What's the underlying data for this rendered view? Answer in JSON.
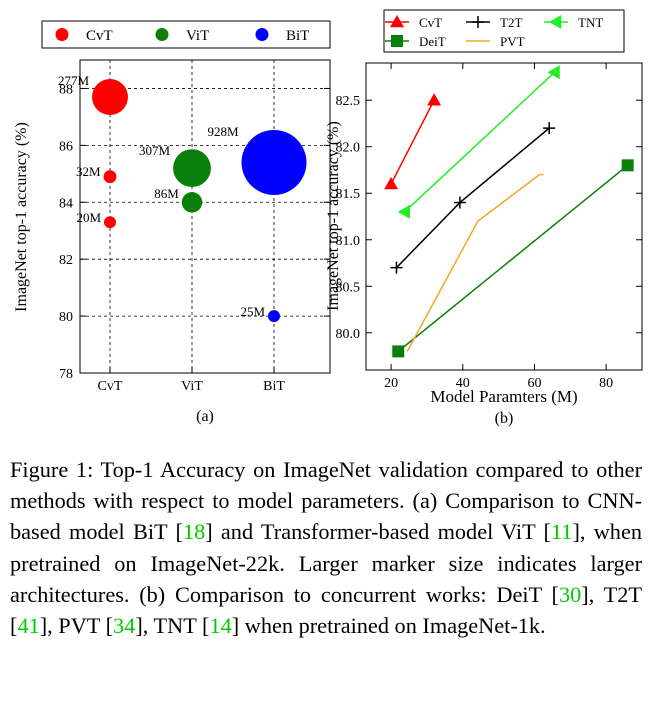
{
  "chart_data": [
    {
      "type": "scatter",
      "panel_label": "(a)",
      "xlabel": "",
      "ylabel": "ImageNet top-1 accuracy (%)",
      "categories": [
        "CvT",
        "ViT",
        "BiT"
      ],
      "ylim": [
        78,
        89
      ],
      "yticks": [
        "78",
        "80",
        "82",
        "84",
        "86",
        "88"
      ],
      "legend": {
        "placement": "top",
        "entries": [
          "CvT",
          "ViT",
          "BiT"
        ]
      },
      "series": [
        {
          "name": "CvT",
          "color": "#ff0000",
          "points": [
            {
              "category": "CvT",
              "y": 87.7,
              "params_m": 277,
              "label": "277M"
            },
            {
              "category": "CvT",
              "y": 84.9,
              "params_m": 32,
              "label": "32M"
            },
            {
              "category": "CvT",
              "y": 83.3,
              "params_m": 20,
              "label": "20M"
            }
          ]
        },
        {
          "name": "ViT",
          "color": "#0a800a",
          "points": [
            {
              "category": "ViT",
              "y": 85.2,
              "params_m": 307,
              "label": "307M"
            },
            {
              "category": "ViT",
              "y": 84.0,
              "params_m": 86,
              "label": "86M"
            }
          ]
        },
        {
          "name": "BiT",
          "color": "#0000ff",
          "points": [
            {
              "category": "BiT",
              "y": 85.4,
              "params_m": 928,
              "label": "928M"
            },
            {
              "category": "BiT",
              "y": 80.0,
              "params_m": 25,
              "label": "25M"
            }
          ]
        }
      ]
    },
    {
      "type": "line",
      "panel_label": "(b)",
      "xlabel": "Model Paramters (M)",
      "ylabel": "ImageNet top-1 accuracy (%)",
      "xlim": [
        13,
        90
      ],
      "ylim": [
        79.6,
        82.9
      ],
      "xticks": [
        "20",
        "40",
        "60",
        "80"
      ],
      "yticks": [
        "80.0",
        "80.5",
        "81.0",
        "81.5",
        "82.0",
        "82.5"
      ],
      "legend": {
        "placement": "top",
        "entries": [
          "CvT",
          "T2T",
          "TNT",
          "DeiT",
          "PVT"
        ]
      },
      "series": [
        {
          "name": "CvT",
          "color": "#ff0000",
          "marker": "triangle-up",
          "x": [
            20,
            32
          ],
          "y": [
            81.6,
            82.5
          ]
        },
        {
          "name": "T2T",
          "color": "#000000",
          "marker": "plus",
          "x": [
            21.5,
            39.2,
            64.1
          ],
          "y": [
            80.7,
            81.4,
            82.2
          ]
        },
        {
          "name": "TNT",
          "color": "#22ee22",
          "marker": "triangle-left",
          "x": [
            23.8,
            65.6
          ],
          "y": [
            81.3,
            82.8
          ]
        },
        {
          "name": "DeiT",
          "color": "#0a800a",
          "marker": "square",
          "x": [
            22,
            86
          ],
          "y": [
            79.8,
            81.8
          ]
        },
        {
          "name": "PVT",
          "color": "#f5a623",
          "marker": "none",
          "x": [
            24.5,
            44.2,
            61.4,
            62.5
          ],
          "y": [
            79.8,
            81.2,
            81.7,
            81.7
          ]
        }
      ]
    }
  ],
  "caption": {
    "parts": [
      {
        "text": "Figure 1: Top-1 Accuracy on ImageNet validation compared to other methods with respect to model parameters. (a) Comparison to CNN-based model BiT ["
      },
      {
        "text": "18",
        "ref": true
      },
      {
        "text": "] and Transformer-based model ViT ["
      },
      {
        "text": "11",
        "ref": true
      },
      {
        "text": "], when pretrained on ImageNet-22k. Larger marker size indicates larger architectures. (b) Comparison to concurrent works: DeiT ["
      },
      {
        "text": "30",
        "ref": true
      },
      {
        "text": "], T2T ["
      },
      {
        "text": "41",
        "ref": true
      },
      {
        "text": "], PVT ["
      },
      {
        "text": "34",
        "ref": true
      },
      {
        "text": "], TNT ["
      },
      {
        "text": "14",
        "ref": true
      },
      {
        "text": "] when pretrained on ImageNet-1k."
      }
    ]
  }
}
